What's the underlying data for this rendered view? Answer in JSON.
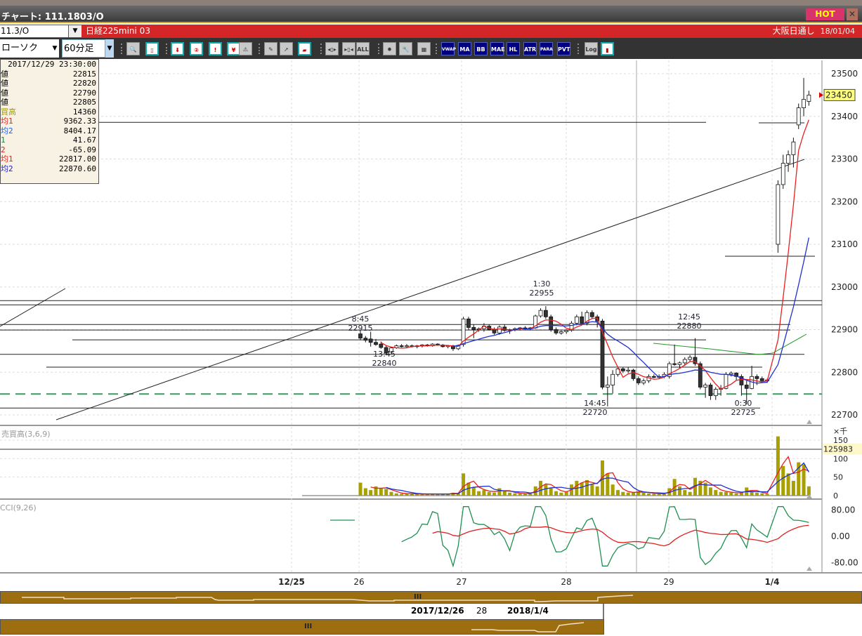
{
  "window": {
    "title": "チャート: 111.1803/O",
    "hot_label": "HOT",
    "close_label": "✕"
  },
  "symbol_bar": {
    "code": "11.3/O",
    "instrument": "日経225mini 03",
    "session": "大阪日通し",
    "date": "18/01/04"
  },
  "toolbar": {
    "chart_type": "ローソク",
    "interval": "60分足",
    "icons": [
      {
        "name": "zoom-icon",
        "label": "🔍",
        "style": "gray"
      },
      {
        "name": "frame-icon",
        "label": "▯",
        "style": "teal"
      },
      {
        "name": "download-icon",
        "label": "⬇",
        "style": "teal"
      },
      {
        "name": "search-2-icon",
        "label": "②",
        "style": "teal"
      },
      {
        "name": "bar-alert-icon",
        "label": "!",
        "style": "teal"
      },
      {
        "name": "yen-icon",
        "label": "¥",
        "style": "teal"
      },
      {
        "name": "warning-icon",
        "label": "⚠",
        "style": "gray"
      },
      {
        "name": "pen-icon",
        "label": "✎",
        "style": "gray"
      },
      {
        "name": "cursor-icon",
        "label": "➚",
        "style": "gray"
      },
      {
        "name": "eraser-icon",
        "label": "▰",
        "style": "teal"
      },
      {
        "name": "expand-icon",
        "label": "◂▯▸",
        "style": "gray"
      },
      {
        "name": "shrink-icon",
        "label": "▸▯◂",
        "style": "gray"
      },
      {
        "name": "all-icon",
        "label": "ALL",
        "style": "gray"
      },
      {
        "name": "gear-icon",
        "label": "✹",
        "style": "gray"
      },
      {
        "name": "wrench-icon",
        "label": "🔧",
        "style": "gray"
      },
      {
        "name": "color-icon",
        "label": "▦",
        "style": "gray"
      },
      {
        "name": "vwap-icon",
        "label": "VWAP",
        "style": "blue"
      },
      {
        "name": "ma-icon",
        "label": "MA",
        "style": "blue"
      },
      {
        "name": "bb-icon",
        "label": "BB",
        "style": "blue"
      },
      {
        "name": "mae-icon",
        "label": "MAE",
        "style": "blue"
      },
      {
        "name": "hl-icon",
        "label": "HL",
        "style": "blue"
      },
      {
        "name": "atr-icon",
        "label": "ATR",
        "style": "blue"
      },
      {
        "name": "para-icon",
        "label": "PARA",
        "style": "blue"
      },
      {
        "name": "pvt-icon",
        "label": "PVT",
        "style": "blue"
      },
      {
        "name": "log-icon",
        "label": "Log",
        "style": "gray"
      },
      {
        "name": "chart-window-icon",
        "label": "▮",
        "style": "teal"
      }
    ]
  },
  "info_panel": {
    "timestamp": "2017/12/29  23:30:00",
    "rows": [
      {
        "label": "値",
        "value": "22815",
        "color": "#000"
      },
      {
        "label": "値",
        "value": "22820",
        "color": "#000"
      },
      {
        "label": "値",
        "value": "22790",
        "color": "#000"
      },
      {
        "label": "値",
        "value": "22805",
        "color": "#000"
      },
      {
        "label": "買高",
        "value": "14360",
        "color": "#a0a000"
      },
      {
        "label": "均1",
        "value": "9362.33",
        "color": "#e02020"
      },
      {
        "label": "均2",
        "value": "8404.17",
        "color": "#2060e0"
      },
      {
        "label": "1",
        "value": "41.67",
        "color": "#208040"
      },
      {
        "label": "2",
        "value": "-65.09",
        "color": "#e02020"
      },
      {
        "label": "均1",
        "value": "22817.00",
        "color": "#e02020"
      },
      {
        "label": "均2",
        "value": "22870.60",
        "color": "#2020c0"
      }
    ]
  },
  "chart_data": {
    "type": "candlestick",
    "price_axis": {
      "ticks": [
        23500,
        23400,
        23300,
        23200,
        23100,
        23000,
        22900,
        22800,
        22700
      ],
      "range": [
        22680,
        23520
      ]
    },
    "x_axis": {
      "labels": [
        "12/25",
        "26",
        "27",
        "28",
        "29",
        "1/4"
      ]
    },
    "last_price": "23450",
    "annotations": [
      {
        "time": "8:45",
        "price": "22915"
      },
      {
        "time": "13:45",
        "price": "22840"
      },
      {
        "time": "1:30",
        "price": "22955"
      },
      {
        "time": "14:45",
        "price": "22720"
      },
      {
        "time": "12:45",
        "price": "22880"
      },
      {
        "time": "0:30",
        "price": "22725"
      }
    ],
    "horizontal_levels": [
      23386,
      23072,
      22968,
      22958,
      22912,
      22899,
      22876,
      22842,
      22812,
      22716
    ],
    "support_dashed_level": 22749,
    "candles": [
      [
        22890,
        22900,
        22875,
        22880
      ],
      [
        22880,
        22885,
        22870,
        22875
      ],
      [
        22878,
        22895,
        22860,
        22870
      ],
      [
        22870,
        22878,
        22862,
        22865
      ],
      [
        22866,
        22872,
        22855,
        22858
      ],
      [
        22858,
        22862,
        22840,
        22845
      ],
      [
        22848,
        22860,
        22842,
        22857
      ],
      [
        22857,
        22865,
        22855,
        22862
      ],
      [
        22862,
        22866,
        22858,
        22860
      ],
      [
        22860,
        22866,
        22856,
        22862
      ],
      [
        22862,
        22865,
        22858,
        22860
      ],
      [
        22860,
        22864,
        22856,
        22862
      ],
      [
        22862,
        22866,
        22858,
        22864
      ],
      [
        22864,
        22866,
        22860,
        22862
      ],
      [
        22862,
        22868,
        22860,
        22866
      ],
      [
        22866,
        22868,
        22862,
        22864
      ],
      [
        22864,
        22866,
        22858,
        22860
      ],
      [
        22860,
        22864,
        22856,
        22862
      ],
      [
        22862,
        22864,
        22850,
        22855
      ],
      [
        22855,
        22865,
        22852,
        22863
      ],
      [
        22865,
        22930,
        22860,
        22925
      ],
      [
        22925,
        22930,
        22900,
        22905
      ],
      [
        22905,
        22912,
        22880,
        22900
      ],
      [
        22900,
        22905,
        22895,
        22902
      ],
      [
        22902,
        22915,
        22895,
        22908
      ],
      [
        22908,
        22912,
        22898,
        22900
      ],
      [
        22900,
        22905,
        22888,
        22892
      ],
      [
        22892,
        22910,
        22888,
        22906
      ],
      [
        22906,
        22912,
        22895,
        22898
      ],
      [
        22898,
        22902,
        22890,
        22900
      ],
      [
        22900,
        22905,
        22896,
        22902
      ],
      [
        22902,
        22906,
        22898,
        22904
      ],
      [
        22904,
        22908,
        22900,
        22902
      ],
      [
        22902,
        22906,
        22898,
        22904
      ],
      [
        22904,
        22935,
        22902,
        22932
      ],
      [
        22932,
        22950,
        22928,
        22945
      ],
      [
        22945,
        22955,
        22925,
        22930
      ],
      [
        22930,
        22935,
        22895,
        22900
      ],
      [
        22900,
        22905,
        22888,
        22892
      ],
      [
        22892,
        22898,
        22888,
        22895
      ],
      [
        22895,
        22900,
        22890,
        22898
      ],
      [
        22898,
        22920,
        22895,
        22915
      ],
      [
        22915,
        22935,
        22910,
        22930
      ],
      [
        22930,
        22942,
        22912,
        22915
      ],
      [
        22915,
        22945,
        22910,
        22940
      ],
      [
        22940,
        22945,
        22925,
        22930
      ],
      [
        22930,
        22935,
        22905,
        22920
      ],
      [
        22920,
        22925,
        22760,
        22765
      ],
      [
        22765,
        22790,
        22720,
        22770
      ],
      [
        22770,
        22805,
        22750,
        22795
      ],
      [
        22795,
        22812,
        22790,
        22808
      ],
      [
        22808,
        22812,
        22798,
        22803
      ],
      [
        22803,
        22812,
        22798,
        22805
      ],
      [
        22805,
        22808,
        22780,
        22785
      ],
      [
        22785,
        22790,
        22770,
        22775
      ],
      [
        22775,
        22785,
        22770,
        22780
      ],
      [
        22780,
        22795,
        22775,
        22790
      ],
      [
        22790,
        22795,
        22786,
        22788
      ],
      [
        22788,
        22795,
        22785,
        22790
      ],
      [
        22790,
        22800,
        22786,
        22795
      ],
      [
        22790,
        22825,
        22785,
        22820
      ],
      [
        22820,
        22865,
        22815,
        22818
      ],
      [
        22818,
        22825,
        22810,
        22822
      ],
      [
        22822,
        22835,
        22815,
        22830
      ],
      [
        22830,
        22840,
        22825,
        22835
      ],
      [
        22835,
        22880,
        22815,
        22820
      ],
      [
        22820,
        22825,
        22760,
        22765
      ],
      [
        22765,
        22775,
        22740,
        22770
      ],
      [
        22770,
        22775,
        22735,
        22745
      ],
      [
        22745,
        22765,
        22735,
        22760
      ],
      [
        22760,
        22770,
        22745,
        22762
      ],
      [
        22762,
        22800,
        22760,
        22795
      ],
      [
        22795,
        22802,
        22790,
        22798
      ],
      [
        22798,
        22800,
        22780,
        22790
      ],
      [
        22790,
        22795,
        22745,
        22770
      ],
      [
        22770,
        22780,
        22725,
        22762
      ],
      [
        22762,
        22815,
        22760,
        22790
      ],
      [
        22790,
        22795,
        22770,
        22785
      ],
      [
        22785,
        22790,
        22775,
        22780
      ],
      [
        22780,
        22785,
        22775,
        22782
      ],
      [
        23100,
        23250,
        23080,
        23240
      ],
      [
        23240,
        23310,
        23230,
        23290
      ],
      [
        23290,
        23320,
        23270,
        23310
      ],
      [
        23310,
        23350,
        23280,
        23340
      ],
      [
        23380,
        23430,
        23370,
        23420
      ],
      [
        23420,
        23490,
        23400,
        23440
      ],
      [
        23435,
        23460,
        23425,
        23450
      ]
    ],
    "volume": {
      "title": "売買高(3,6,9)",
      "unit": "×千",
      "ticks": [
        150,
        100,
        50,
        0
      ],
      "last_value": "125983",
      "values": [
        35,
        20,
        15,
        25,
        20,
        18,
        10,
        6,
        5,
        5,
        5,
        4,
        4,
        4,
        5,
        4,
        4,
        5,
        8,
        6,
        60,
        35,
        22,
        12,
        15,
        10,
        8,
        20,
        12,
        8,
        6,
        5,
        6,
        5,
        25,
        40,
        30,
        20,
        12,
        8,
        10,
        30,
        40,
        35,
        42,
        30,
        25,
        95,
        60,
        30,
        15,
        10,
        8,
        8,
        12,
        8,
        6,
        5,
        5,
        4,
        20,
        45,
        25,
        15,
        10,
        48,
        40,
        35,
        22,
        15,
        10,
        10,
        8,
        6,
        8,
        22,
        12,
        8,
        6,
        5,
        175,
        80,
        60,
        40,
        90,
        85,
        25
      ]
    },
    "oscillator": {
      "title": "CCI(9,26)",
      "ticks": [
        "80.00",
        "0.00",
        "-80.00"
      ]
    }
  },
  "navigator": {
    "date_start": "2017/12/26",
    "date_mid": "28",
    "date_end": "2018/1/4",
    "grip": "III"
  },
  "colors": {
    "ma_short": "#e82020",
    "ma_long": "#2030d0",
    "volume_bar": "#a8a000",
    "cci": "#209050",
    "cci_signal": "#e02020",
    "accent_red": "#d42626"
  }
}
